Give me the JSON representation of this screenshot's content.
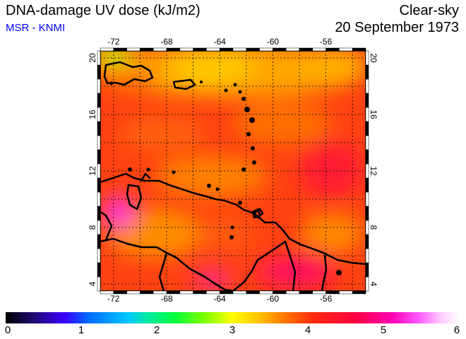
{
  "header": {
    "title": "DNA-damage UV dose (kJ/m2)",
    "source": "MSR - KNMI",
    "condition": "Clear-sky",
    "date": "20 September 1973"
  },
  "map": {
    "region": "Caribbean Sea",
    "lon_range": [
      -73,
      -53
    ],
    "lat_range": [
      3.5,
      20.5
    ],
    "lon_ticks": [
      {
        "value": -72,
        "label": "-72"
      },
      {
        "value": -68,
        "label": "-68"
      },
      {
        "value": -64,
        "label": "-64"
      },
      {
        "value": -60,
        "label": "-60"
      },
      {
        "value": -56,
        "label": "-56"
      }
    ],
    "lat_ticks": [
      {
        "value": 4,
        "label": "4"
      },
      {
        "value": 8,
        "label": "8"
      },
      {
        "value": 12,
        "label": "12"
      },
      {
        "value": 16,
        "label": "16"
      },
      {
        "value": 20,
        "label": "20"
      }
    ],
    "gridlines": true,
    "colors": {
      "coast": "#000000",
      "background_dose": "#ff4a10"
    }
  },
  "colorbar": {
    "min": 0,
    "max": 6,
    "ticks": [
      {
        "value": 0,
        "label": "0"
      },
      {
        "value": 1,
        "label": "1"
      },
      {
        "value": 2,
        "label": "2"
      },
      {
        "value": 3,
        "label": "3"
      },
      {
        "value": 4,
        "label": "4"
      },
      {
        "value": 5,
        "label": "5"
      },
      {
        "value": 6,
        "label": "6"
      }
    ]
  }
}
